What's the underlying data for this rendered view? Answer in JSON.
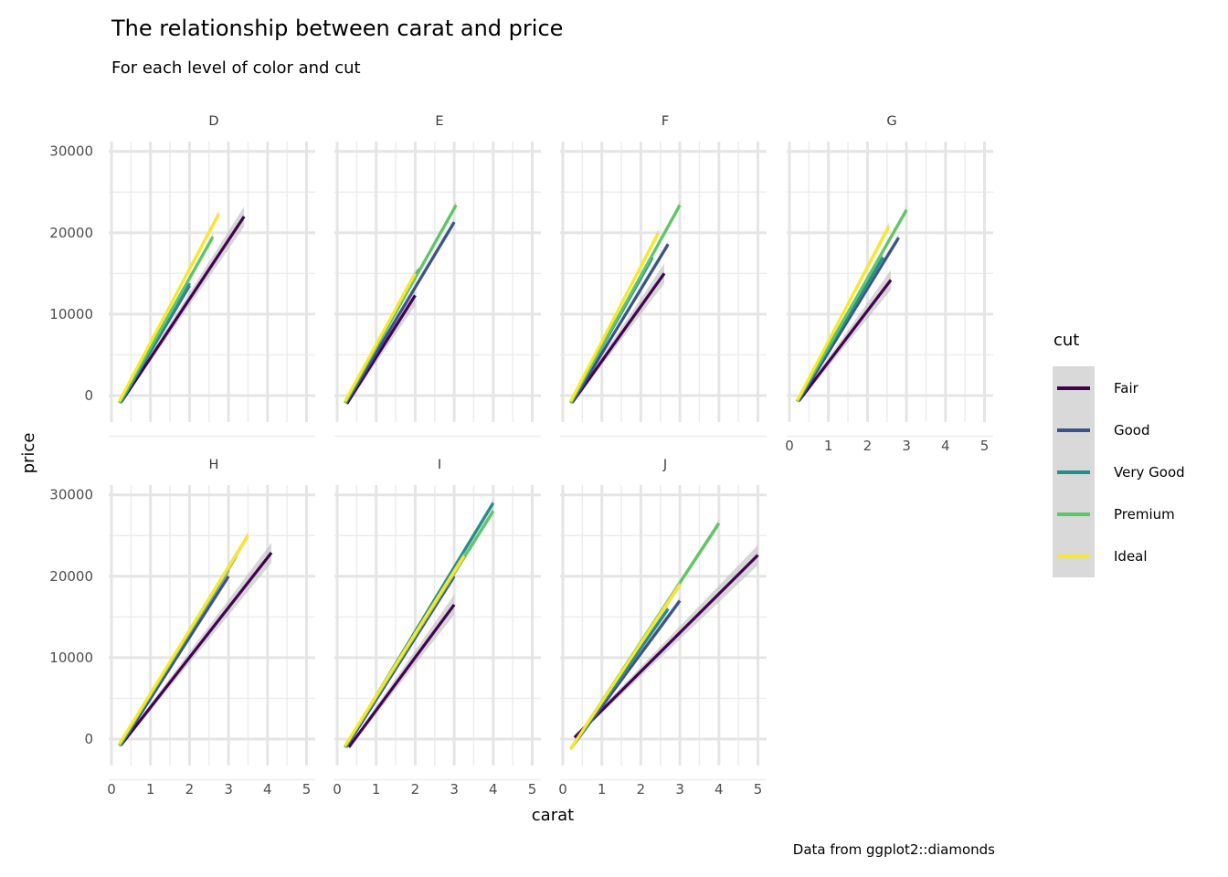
{
  "chart_data": {
    "type": "line",
    "title": "The relationship between carat and price",
    "subtitle": "For each level of color and cut",
    "xlabel": "carat",
    "ylabel": "price",
    "caption": "Data from ggplot2::diamonds",
    "xlim": [
      0,
      5
    ],
    "ylim": [
      -3000,
      32000
    ],
    "x_ticks": [
      "0",
      "1",
      "2",
      "3",
      "4",
      "5"
    ],
    "y_ticks": [
      "0",
      "10000",
      "20000",
      "30000"
    ],
    "x_tick_values": [
      0,
      1,
      2,
      3,
      4,
      5
    ],
    "y_tick_values": [
      0,
      10000,
      20000,
      30000
    ],
    "grid": true,
    "legend": {
      "title": "cut",
      "position": "right",
      "entries": [
        "Fair",
        "Good",
        "Very Good",
        "Premium",
        "Ideal"
      ]
    },
    "colors": {
      "Fair": "#440154",
      "Good": "#3B528B",
      "Very Good": "#21908C",
      "Premium": "#5DC863",
      "Ideal": "#FDE725",
      "ribbon": "#bdbdbd",
      "legend_bg": "#d9d9d9"
    },
    "facets": [
      {
        "label": "D",
        "series": [
          {
            "name": "Fair",
            "x": [
              0.25,
              3.4
            ],
            "y": [
              -800,
              22000
            ]
          },
          {
            "name": "Good",
            "x": [
              0.23,
              2.0
            ],
            "y": [
              -800,
              13500
            ]
          },
          {
            "name": "Very Good",
            "x": [
              0.23,
              2.0
            ],
            "y": [
              -900,
              13800
            ]
          },
          {
            "name": "Premium",
            "x": [
              0.2,
              2.6
            ],
            "y": [
              -900,
              19500
            ]
          },
          {
            "name": "Ideal",
            "x": [
              0.2,
              2.75
            ],
            "y": [
              -700,
              22300
            ]
          }
        ]
      },
      {
        "label": "E",
        "series": [
          {
            "name": "Fair",
            "x": [
              0.25,
              2.0
            ],
            "y": [
              -1000,
              12300
            ]
          },
          {
            "name": "Good",
            "x": [
              0.23,
              3.0
            ],
            "y": [
              -900,
              21300
            ]
          },
          {
            "name": "Very Good",
            "x": [
              0.2,
              2.1
            ],
            "y": [
              -900,
              15500
            ]
          },
          {
            "name": "Premium",
            "x": [
              0.2,
              3.05
            ],
            "y": [
              -900,
              23400
            ]
          },
          {
            "name": "Ideal",
            "x": [
              0.2,
              2.0
            ],
            "y": [
              -700,
              15000
            ]
          }
        ]
      },
      {
        "label": "F",
        "series": [
          {
            "name": "Fair",
            "x": [
              0.25,
              2.6
            ],
            "y": [
              -800,
              15000
            ]
          },
          {
            "name": "Good",
            "x": [
              0.23,
              2.7
            ],
            "y": [
              -900,
              18600
            ]
          },
          {
            "name": "Very Good",
            "x": [
              0.2,
              2.3
            ],
            "y": [
              -900,
              17000
            ]
          },
          {
            "name": "Premium",
            "x": [
              0.2,
              3.0
            ],
            "y": [
              -900,
              23400
            ]
          },
          {
            "name": "Ideal",
            "x": [
              0.2,
              2.45
            ],
            "y": [
              -700,
              20000
            ]
          }
        ]
      },
      {
        "label": "G",
        "series": [
          {
            "name": "Fair",
            "x": [
              0.25,
              2.6
            ],
            "y": [
              -600,
              14200
            ]
          },
          {
            "name": "Good",
            "x": [
              0.23,
              2.8
            ],
            "y": [
              -700,
              19400
            ]
          },
          {
            "name": "Very Good",
            "x": [
              0.2,
              2.4
            ],
            "y": [
              -700,
              17000
            ]
          },
          {
            "name": "Premium",
            "x": [
              0.2,
              3.0
            ],
            "y": [
              -700,
              22800
            ]
          },
          {
            "name": "Ideal",
            "x": [
              0.2,
              2.55
            ],
            "y": [
              -600,
              20800
            ]
          }
        ]
      },
      {
        "label": "H",
        "series": [
          {
            "name": "Fair",
            "x": [
              0.25,
              4.1
            ],
            "y": [
              -700,
              22900
            ]
          },
          {
            "name": "Good",
            "x": [
              0.23,
              3.0
            ],
            "y": [
              -800,
              20000
            ]
          },
          {
            "name": "Very Good",
            "x": [
              0.2,
              3.0
            ],
            "y": [
              -800,
              20800
            ]
          },
          {
            "name": "Premium",
            "x": [
              0.2,
              3.2
            ],
            "y": [
              -800,
              22500
            ]
          },
          {
            "name": "Ideal",
            "x": [
              0.2,
              3.5
            ],
            "y": [
              -600,
              25000
            ]
          }
        ]
      },
      {
        "label": "I",
        "series": [
          {
            "name": "Fair",
            "x": [
              0.3,
              3.0
            ],
            "y": [
              -1000,
              16500
            ]
          },
          {
            "name": "Good",
            "x": [
              0.23,
              3.0
            ],
            "y": [
              -1000,
              20000
            ]
          },
          {
            "name": "Very Good",
            "x": [
              0.2,
              4.0
            ],
            "y": [
              -1000,
              29000
            ]
          },
          {
            "name": "Premium",
            "x": [
              0.2,
              4.0
            ],
            "y": [
              -1000,
              28000
            ]
          },
          {
            "name": "Ideal",
            "x": [
              0.2,
              3.25
            ],
            "y": [
              -800,
              22500
            ]
          }
        ]
      },
      {
        "label": "J",
        "series": [
          {
            "name": "Fair",
            "x": [
              0.3,
              5.0
            ],
            "y": [
              200,
              22600
            ]
          },
          {
            "name": "Good",
            "x": [
              0.23,
              3.0
            ],
            "y": [
              -1000,
              17000
            ]
          },
          {
            "name": "Very Good",
            "x": [
              0.2,
              2.7
            ],
            "y": [
              -1200,
              16000
            ]
          },
          {
            "name": "Premium",
            "x": [
              0.2,
              4.0
            ],
            "y": [
              -1200,
              26500
            ]
          },
          {
            "name": "Ideal",
            "x": [
              0.2,
              3.0
            ],
            "y": [
              -1200,
              19000
            ]
          }
        ]
      }
    ]
  }
}
